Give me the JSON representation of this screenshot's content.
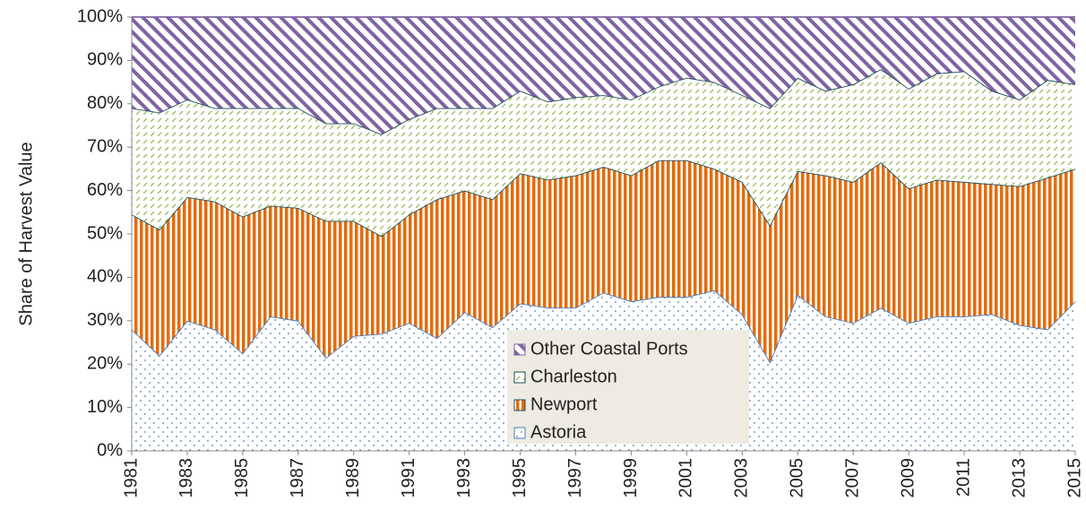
{
  "chart_data": {
    "type": "stacked_area",
    "y_label": "Share of Harvest Value",
    "x": [
      1981,
      1982,
      1983,
      1984,
      1985,
      1986,
      1987,
      1988,
      1989,
      1990,
      1991,
      1992,
      1993,
      1994,
      1995,
      1996,
      1997,
      1998,
      1999,
      2000,
      2001,
      2002,
      2003,
      2004,
      2005,
      2006,
      2007,
      2008,
      2009,
      2010,
      2011,
      2012,
      2013,
      2014,
      2015
    ],
    "xlim": [
      1981,
      2015
    ],
    "xticks": [
      1981,
      1983,
      1985,
      1987,
      1989,
      1991,
      1993,
      1995,
      1997,
      1999,
      2001,
      2003,
      2005,
      2007,
      2009,
      2011,
      2013,
      2015
    ],
    "ylim": [
      0,
      100
    ],
    "yticks": [
      {
        "value": 0,
        "label": "0%"
      },
      {
        "value": 10,
        "label": "10%"
      },
      {
        "value": 20,
        "label": "20%"
      },
      {
        "value": 30,
        "label": "30%"
      },
      {
        "value": 40,
        "label": "40%"
      },
      {
        "value": 50,
        "label": "50%"
      },
      {
        "value": 60,
        "label": "60%"
      },
      {
        "value": 70,
        "label": "70%"
      },
      {
        "value": 80,
        "label": "80%"
      },
      {
        "value": 90,
        "label": "90%"
      },
      {
        "value": 100,
        "label": "100%"
      }
    ],
    "series": [
      {
        "name": "Astoria",
        "color": "#4a7ebb",
        "values": [
          28,
          22,
          30,
          28,
          22.5,
          31,
          30,
          21.5,
          26.5,
          27,
          29.5,
          26,
          32,
          28.5,
          34,
          33,
          33,
          36.5,
          34.5,
          35.5,
          35.5,
          37,
          31.5,
          20.5,
          36,
          31,
          29.5,
          33,
          29.5,
          31,
          31,
          31.5,
          29,
          28,
          34.5
        ]
      },
      {
        "name": "Newport",
        "color": "#e46c0a",
        "values": [
          26.5,
          29,
          28.5,
          29.5,
          31.5,
          25.5,
          26,
          31.5,
          26.5,
          22.5,
          25,
          32,
          28,
          29.5,
          30,
          29.5,
          30.5,
          29,
          29,
          31.5,
          31.5,
          28,
          30.5,
          31.5,
          28.5,
          32.5,
          32.5,
          33.5,
          31,
          31.5,
          31,
          30,
          32,
          35,
          30.5
        ]
      },
      {
        "name": "Charleston",
        "color": "#9bbb59",
        "values": [
          24.5,
          27,
          22.5,
          21.5,
          25,
          22.5,
          23,
          22.5,
          22.5,
          23.5,
          22,
          21,
          19,
          21,
          19,
          18,
          18,
          16.5,
          17.5,
          17,
          19,
          20,
          20,
          27,
          21.5,
          19.5,
          22.5,
          21.5,
          23,
          24.5,
          25.5,
          21.5,
          20,
          22.5,
          19.5
        ]
      },
      {
        "name": "Other Coastal Ports",
        "color": "#8064a2",
        "values": [
          21,
          22,
          19,
          21,
          21,
          21,
          21,
          24.5,
          24.5,
          27,
          23.5,
          21,
          21,
          21,
          17,
          19.5,
          18.5,
          18,
          19,
          16,
          14,
          15,
          18,
          21,
          14,
          17,
          15.5,
          12,
          16.5,
          13,
          12.5,
          17,
          19,
          14.5,
          15.5
        ]
      }
    ]
  }
}
